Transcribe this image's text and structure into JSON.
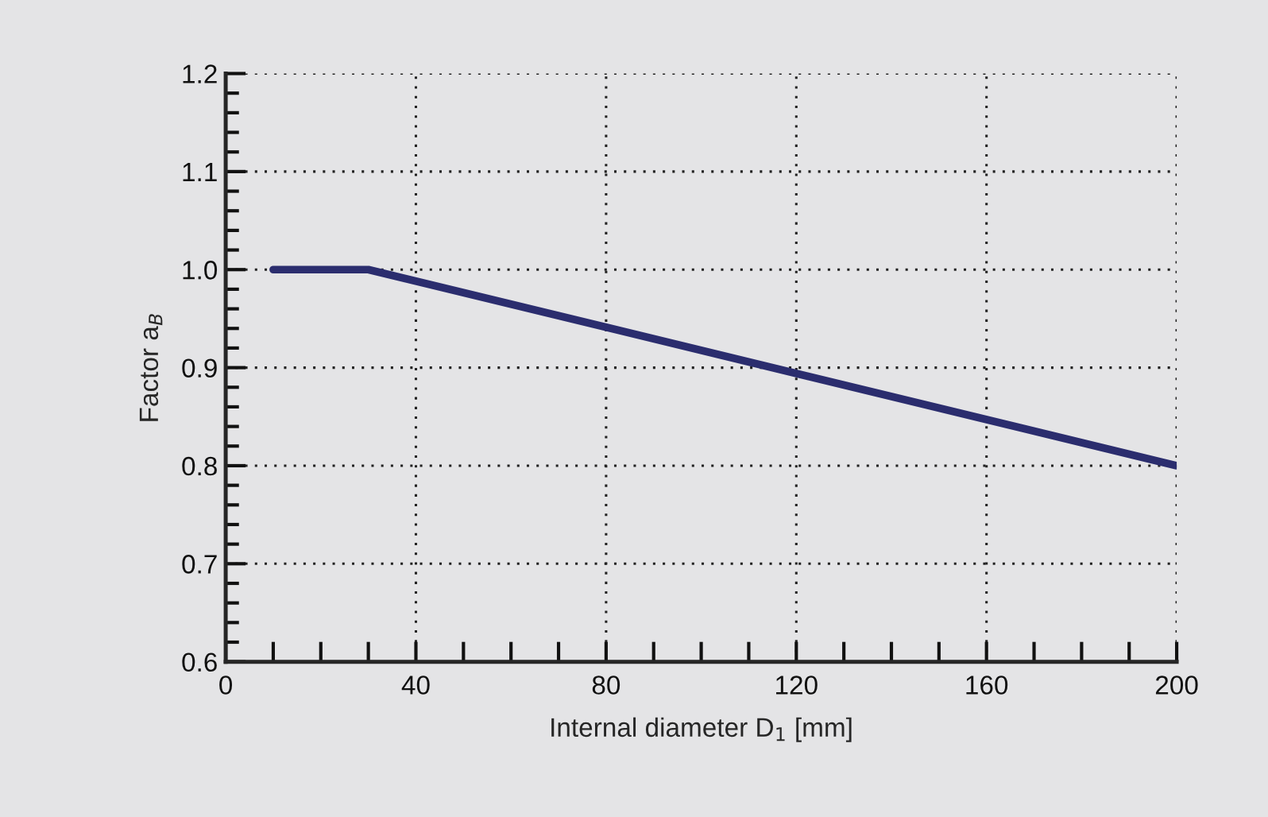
{
  "chart_data": {
    "type": "line",
    "xlabel": "Internal diameter D$_{1}$ [mm]",
    "ylabel": "Factor a$_{B}$",
    "x": [
      10,
      30,
      200
    ],
    "series": [
      {
        "color": "#2b2d6e",
        "values": [
          1.0,
          1.0,
          0.8
        ]
      }
    ],
    "xlim": [
      0,
      200
    ],
    "xticks": [
      0,
      {
        "value": 10,
        "label": null
      },
      {
        "value": 20,
        "label": null
      },
      {
        "value": 30,
        "label": null
      },
      40,
      {
        "value": 50,
        "label": null
      },
      {
        "value": 60,
        "label": null
      },
      {
        "value": 70,
        "label": null
      },
      80,
      {
        "value": 90,
        "label": null
      },
      {
        "value": 100,
        "label": null
      },
      {
        "value": 110,
        "label": null
      },
      120,
      {
        "value": 130,
        "label": null
      },
      {
        "value": 140,
        "label": null
      },
      {
        "value": 150,
        "label": null
      },
      160,
      {
        "value": 170,
        "label": null
      },
      {
        "value": 180,
        "label": null
      },
      {
        "value": 190,
        "label": null
      },
      200
    ],
    "ylim": [
      0.6,
      1.2
    ],
    "yticks": [
      0.6,
      {
        "value": 0.62,
        "label": null
      },
      {
        "value": 0.64,
        "label": null
      },
      {
        "value": 0.66,
        "label": null
      },
      {
        "value": 0.68,
        "label": null
      },
      0.7,
      {
        "value": 0.72,
        "label": null
      },
      {
        "value": 0.74,
        "label": null
      },
      {
        "value": 0.76,
        "label": null
      },
      {
        "value": 0.78,
        "label": null
      },
      0.8,
      {
        "value": 0.82,
        "label": null
      },
      {
        "value": 0.84,
        "label": null
      },
      {
        "value": 0.86,
        "label": null
      },
      {
        "value": 0.88,
        "label": null
      },
      0.9,
      {
        "value": 0.92,
        "label": null
      },
      {
        "value": 0.94,
        "label": null
      },
      {
        "value": 0.96,
        "label": null
      },
      {
        "value": 0.98,
        "label": null
      },
      {
        "value": 1.0,
        "label": "1.0"
      },
      {
        "value": 1.02,
        "label": null
      },
      {
        "value": 1.04,
        "label": null
      },
      {
        "value": 1.06,
        "label": null
      },
      {
        "value": 1.08,
        "label": null
      },
      1.1,
      {
        "value": 1.12,
        "label": null
      },
      {
        "value": 1.14,
        "label": null
      },
      {
        "value": 1.16,
        "label": null
      },
      {
        "value": 1.18,
        "label": null
      },
      1.2
    ],
    "grid": true,
    "line_style": "solid",
    "marker": "none"
  }
}
